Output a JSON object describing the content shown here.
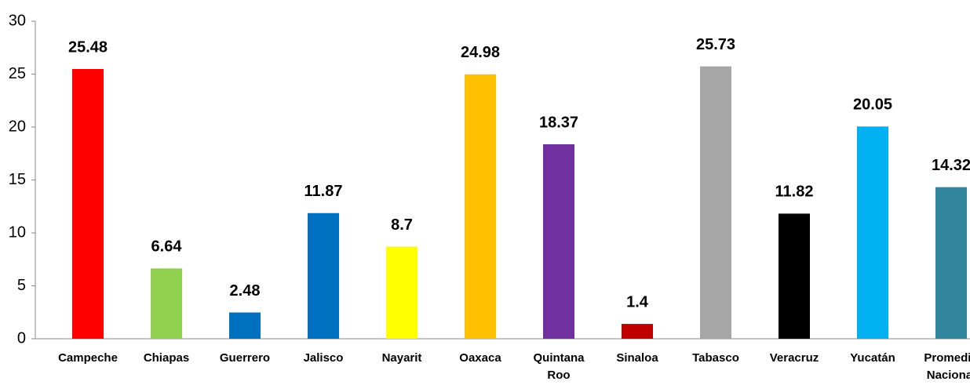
{
  "chart_data": {
    "type": "bar",
    "categories": [
      "Campeche",
      "Chiapas",
      "Guerrero",
      "Jalisco",
      "Nayarit",
      "Oaxaca",
      "Quintana Roo",
      "Sinaloa",
      "Tabasco",
      "Veracruz",
      "Yucatán",
      "Promedio Nacional"
    ],
    "values": [
      25.48,
      6.64,
      2.48,
      11.87,
      8.7,
      24.98,
      18.37,
      1.4,
      25.73,
      11.82,
      20.05,
      14.32
    ],
    "colors": [
      "#ff0000",
      "#92d050",
      "#0070c0",
      "#0070c0",
      "#ffff00",
      "#ffc000",
      "#7030a0",
      "#c00000",
      "#a6a6a6",
      "#000000",
      "#00b0f0",
      "#31859c"
    ],
    "ylim": [
      0,
      30
    ],
    "yticks": [
      0,
      5,
      10,
      15,
      20,
      25,
      30
    ],
    "grid": false
  }
}
